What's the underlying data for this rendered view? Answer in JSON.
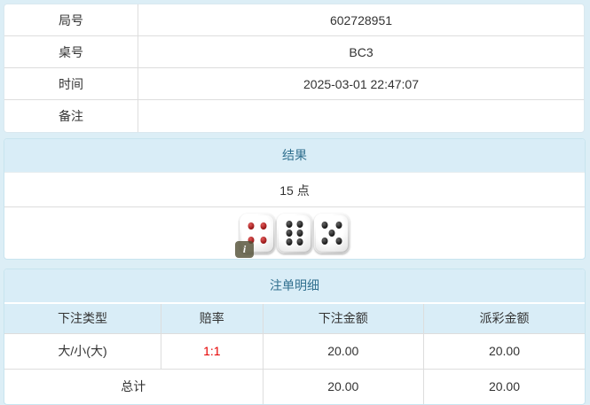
{
  "colors": {
    "page_bg": "#dceef6",
    "panel_border": "#c8e4ef",
    "heading_bg": "#d9edf7",
    "heading_text": "#31708f",
    "table_border": "#dddddd",
    "text": "#333333",
    "odds_red": "#e60000"
  },
  "info_table": {
    "rows": [
      {
        "label": "局号",
        "value": "602728951"
      },
      {
        "label": "桌号",
        "value": "BC3"
      },
      {
        "label": "时间",
        "value": "2025-03-01 22:47:07"
      },
      {
        "label": "备注",
        "value": ""
      }
    ]
  },
  "result_panel": {
    "title": "结果",
    "points": "15 点",
    "dice": [
      {
        "value": 4,
        "pip_color": "red"
      },
      {
        "value": 6,
        "pip_color": "black"
      },
      {
        "value": 5,
        "pip_color": "black"
      }
    ],
    "info_badge": {
      "text": "i",
      "die_index": 0
    }
  },
  "bet_panel": {
    "title": "注单明细",
    "columns": [
      "下注类型",
      "赔率",
      "下注金额",
      "派彩金额"
    ],
    "rows": [
      {
        "bet_type": "大/小(大)",
        "odds": "1:1",
        "bet_amount": "20.00",
        "payout_amount": "20.00"
      }
    ],
    "total_row": {
      "label": "总计",
      "bet_amount": "20.00",
      "payout_amount": "20.00"
    }
  }
}
